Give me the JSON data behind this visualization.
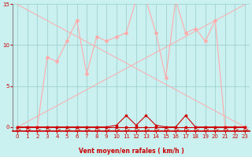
{
  "x": [
    0,
    1,
    2,
    3,
    4,
    5,
    6,
    7,
    8,
    9,
    10,
    11,
    12,
    13,
    14,
    15,
    16,
    17,
    18,
    19,
    20,
    21,
    22,
    23
  ],
  "line_jagged": [
    0,
    0,
    0,
    8.5,
    8,
    10.5,
    13,
    6.5,
    11,
    10.5,
    11,
    11.5,
    15.5,
    15.5,
    11.5,
    6,
    15.5,
    11.5,
    12,
    10.5,
    13,
    0,
    0,
    0
  ],
  "line_near_zero": [
    0,
    0,
    0,
    0,
    0,
    0,
    0,
    0,
    0,
    0,
    0.2,
    1.4,
    0.2,
    1.4,
    0.2,
    0,
    0,
    1.4,
    0,
    0,
    0,
    0,
    0,
    0
  ],
  "line_flat": [
    0,
    0,
    0,
    0,
    0,
    0,
    0,
    0,
    0,
    0,
    0,
    0,
    0,
    0,
    0,
    0,
    0,
    0,
    0,
    0,
    0,
    0,
    0,
    0
  ],
  "line_up": [
    0,
    0.65,
    1.3,
    1.95,
    2.6,
    3.25,
    3.9,
    4.55,
    5.2,
    5.85,
    6.5,
    7.15,
    7.8,
    8.45,
    9.1,
    9.75,
    10.4,
    11.05,
    11.7,
    12.35,
    13.0,
    13.65,
    14.3,
    14.95
  ],
  "line_down": [
    14.95,
    14.3,
    13.65,
    13.0,
    12.35,
    11.7,
    11.05,
    10.4,
    9.75,
    9.1,
    8.45,
    7.8,
    7.15,
    6.5,
    5.85,
    5.2,
    4.55,
    3.9,
    3.25,
    2.6,
    1.95,
    1.3,
    0.65,
    0
  ],
  "bg_color": "#caf0f0",
  "line_color_dark": "#cc0000",
  "line_color_light": "#ffaaaa",
  "grid_color": "#99cccc",
  "xlabel": "Vent moyen/en rafales ( km/h )",
  "ylim": [
    -0.5,
    15
  ],
  "xlim": [
    -0.5,
    23.5
  ],
  "yticks": [
    0,
    5,
    10,
    15
  ],
  "xticks": [
    0,
    1,
    2,
    3,
    4,
    5,
    6,
    7,
    8,
    9,
    10,
    11,
    12,
    13,
    14,
    15,
    16,
    17,
    18,
    19,
    20,
    21,
    22,
    23
  ]
}
